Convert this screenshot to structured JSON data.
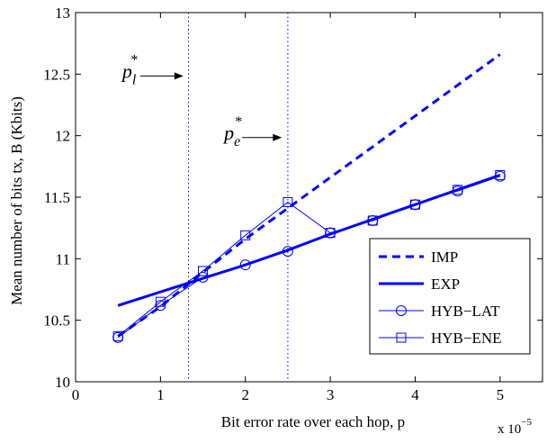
{
  "chart_data": {
    "type": "line",
    "title": "",
    "xlabel": "Bit error rate over each hop, p",
    "ylabel": "Mean number of bits tx, B (Kbits)",
    "x_multiplier_label": "x 10",
    "x_multiplier_exponent": "−5",
    "xlim": [
      0,
      5.5
    ],
    "ylim": [
      10,
      13
    ],
    "x_ticks": [
      0,
      1,
      2,
      3,
      4,
      5
    ],
    "x_tick_labels": [
      "0",
      "1",
      "2",
      "3",
      "4",
      "5"
    ],
    "y_ticks": [
      10,
      10.5,
      11,
      11.5,
      12,
      12.5,
      13
    ],
    "y_tick_labels": [
      "10",
      "10.5",
      "11",
      "11.5",
      "12",
      "12.5",
      "13"
    ],
    "grid": false,
    "legend_position": "bottom-right",
    "color": "#0000ff",
    "series": [
      {
        "name": "IMP",
        "style": "dashed",
        "marker": "none",
        "x": [
          0.5,
          1.0,
          1.5,
          2.0,
          2.5,
          3.0,
          3.5,
          4.0,
          4.5,
          5.0
        ],
        "y": [
          10.37,
          10.61,
          10.89,
          11.16,
          11.41,
          11.66,
          11.91,
          12.16,
          12.41,
          12.66
        ]
      },
      {
        "name": "EXP",
        "style": "solid-thick",
        "marker": "none",
        "x": [
          0.5,
          1.0,
          1.5,
          2.0,
          2.5,
          3.0,
          3.5,
          4.0,
          4.5,
          5.0
        ],
        "y": [
          10.62,
          10.73,
          10.84,
          10.95,
          11.07,
          11.2,
          11.32,
          11.44,
          11.56,
          11.68
        ]
      },
      {
        "name": "HYB−LAT",
        "style": "solid-thin",
        "marker": "circle",
        "x": [
          0.5,
          1.0,
          1.5,
          2.0,
          2.5,
          3.0,
          3.5,
          4.0,
          4.5,
          5.0
        ],
        "y": [
          10.36,
          10.62,
          10.85,
          10.95,
          11.06,
          11.21,
          11.31,
          11.44,
          11.55,
          11.67
        ]
      },
      {
        "name": "HYB−ENE",
        "style": "solid-thin",
        "marker": "square",
        "x": [
          0.5,
          1.0,
          1.5,
          2.0,
          2.5,
          3.0,
          3.5,
          4.0,
          4.5,
          5.0
        ],
        "y": [
          10.37,
          10.65,
          10.9,
          11.19,
          11.46,
          11.21,
          11.31,
          11.44,
          11.56,
          11.68
        ]
      }
    ],
    "vlines": [
      {
        "x": 1.33,
        "style": "dotted"
      },
      {
        "x": 2.5,
        "style": "dotted"
      }
    ],
    "annotations": [
      {
        "base": "p",
        "sub": "l",
        "sup": "*",
        "x": 0.55,
        "y": 12.47,
        "arrow_to_x": 1.27
      },
      {
        "base": "p",
        "sub": "e",
        "sup": "*",
        "x": 1.75,
        "y": 11.97,
        "arrow_to_x": 2.43
      }
    ]
  }
}
